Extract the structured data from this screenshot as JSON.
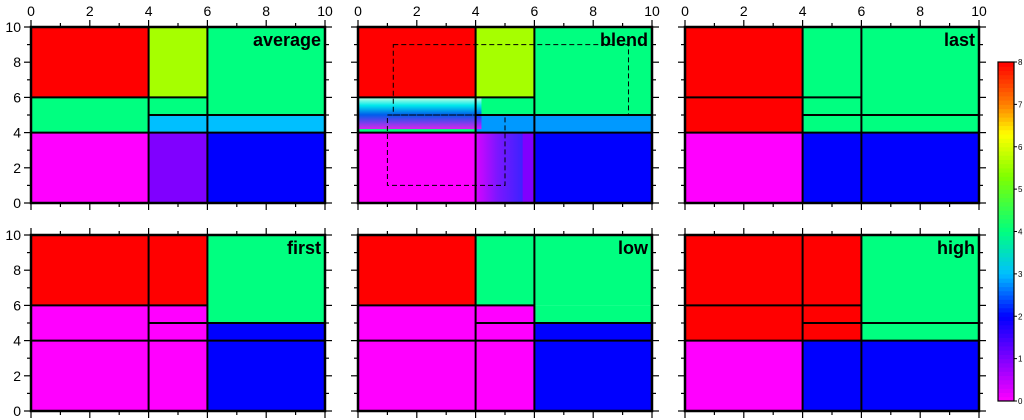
{
  "chart_data": {
    "type": "heatmap",
    "xlim": [
      0,
      10
    ],
    "ylim": [
      0,
      10
    ],
    "x_ticks": [
      "0",
      "2",
      "4",
      "6",
      "8",
      "10"
    ],
    "y_ticks": [
      "0",
      "2",
      "4",
      "6",
      "8",
      "10"
    ],
    "colorbar": {
      "range": [
        0,
        8
      ],
      "tick_labels": [
        "0",
        "1",
        "2",
        "3",
        "4",
        "5",
        "6",
        "7",
        "8"
      ],
      "colormap": [
        {
          "v": 0,
          "color": "#ff00ff"
        },
        {
          "v": 2,
          "color": "#0000ff"
        },
        {
          "v": 3,
          "color": "#00bfff"
        },
        {
          "v": 4,
          "color": "#00ff80"
        },
        {
          "v": 5.3,
          "color": "#80ff00"
        },
        {
          "v": 6.3,
          "color": "#ffff00"
        },
        {
          "v": 7,
          "color": "#ff8000"
        },
        {
          "v": 8,
          "color": "#ff0000"
        }
      ]
    },
    "panels": [
      {
        "title": "average",
        "cells": [
          {
            "x0": 0,
            "x1": 4,
            "y0": 6,
            "y1": 10,
            "value": 8
          },
          {
            "x0": 4,
            "x1": 6,
            "y0": 6,
            "y1": 10,
            "value": 5.6
          },
          {
            "x0": 6,
            "x1": 10,
            "y0": 5,
            "y1": 10,
            "value": 4
          },
          {
            "x0": 0,
            "x1": 4,
            "y0": 4,
            "y1": 6,
            "value": 4
          },
          {
            "x0": 4,
            "x1": 6,
            "y0": 5,
            "y1": 6,
            "value": 4
          },
          {
            "x0": 4,
            "x1": 10,
            "y0": 4,
            "y1": 5,
            "value": 3
          },
          {
            "x0": 0,
            "x1": 4,
            "y0": 0,
            "y1": 4,
            "value": 0
          },
          {
            "x0": 4,
            "x1": 6,
            "y0": 0,
            "y1": 4,
            "value": 1
          },
          {
            "x0": 6,
            "x1": 10,
            "y0": 0,
            "y1": 4,
            "value": 2
          }
        ],
        "grid_lines": [
          [
            0,
            6,
            6,
            6
          ],
          [
            4,
            5,
            10,
            5
          ],
          [
            0,
            4,
            10,
            4
          ],
          [
            4,
            0,
            4,
            10
          ],
          [
            6,
            0,
            6,
            10
          ]
        ]
      },
      {
        "title": "blend",
        "cells": [
          {
            "x0": 0,
            "x1": 4,
            "y0": 6,
            "y1": 10,
            "value": 8
          },
          {
            "x0": 4,
            "x1": 6,
            "y0": 6,
            "y1": 10,
            "value": 5.6
          },
          {
            "x0": 6,
            "x1": 10,
            "y0": 5,
            "y1": 10,
            "value": 4
          },
          {
            "x0": 0,
            "x1": 4,
            "y0": 4,
            "y1": 6,
            "value": 4
          },
          {
            "x0": 4,
            "x1": 6,
            "y0": 5,
            "y1": 6,
            "value": 4
          },
          {
            "x0": 4,
            "x1": 10,
            "y0": 4,
            "y1": 5,
            "value": 2.8
          },
          {
            "x0": 0,
            "x1": 4,
            "y0": 0,
            "y1": 4,
            "value": 0
          },
          {
            "x0": 4,
            "x1": 6,
            "y0": 0,
            "y1": 4,
            "value": 1
          },
          {
            "x0": 6,
            "x1": 10,
            "y0": 0,
            "y1": 4,
            "value": 2
          }
        ],
        "grid_lines": [
          [
            0,
            6,
            6,
            6
          ],
          [
            4,
            5,
            10,
            5
          ],
          [
            0,
            4,
            10,
            4
          ],
          [
            4,
            0,
            4,
            10
          ],
          [
            6,
            0,
            6,
            10
          ]
        ],
        "dashed_boxes": [
          [
            1,
            1,
            5,
            5
          ],
          [
            1.2,
            9,
            9.2,
            5
          ]
        ]
      },
      {
        "title": "last",
        "cells": [
          {
            "x0": 0,
            "x1": 4,
            "y0": 4,
            "y1": 10,
            "value": 8
          },
          {
            "x0": 4,
            "x1": 10,
            "y0": 4,
            "y1": 10,
            "value": 4
          },
          {
            "x0": 0,
            "x1": 4,
            "y0": 0,
            "y1": 4,
            "value": 0
          },
          {
            "x0": 4,
            "x1": 10,
            "y0": 0,
            "y1": 4,
            "value": 2
          }
        ],
        "grid_lines": [
          [
            0,
            6,
            6,
            6
          ],
          [
            4,
            5,
            10,
            5
          ],
          [
            0,
            4,
            10,
            4
          ],
          [
            4,
            0,
            4,
            10
          ],
          [
            6,
            0,
            6,
            10
          ]
        ]
      },
      {
        "title": "first",
        "cells": [
          {
            "x0": 0,
            "x1": 6,
            "y0": 6,
            "y1": 10,
            "value": 8
          },
          {
            "x0": 6,
            "x1": 10,
            "y0": 5,
            "y1": 10,
            "value": 4
          },
          {
            "x0": 4,
            "x1": 6,
            "y0": 5,
            "y1": 6,
            "value": 0
          },
          {
            "x0": 0,
            "x1": 4,
            "y0": 0,
            "y1": 6,
            "value": 0
          },
          {
            "x0": 4,
            "x1": 6,
            "y0": 0,
            "y1": 5,
            "value": 0
          },
          {
            "x0": 6,
            "x1": 10,
            "y0": 0,
            "y1": 5,
            "value": 2
          }
        ],
        "grid_lines": [
          [
            0,
            6,
            6,
            6
          ],
          [
            4,
            5,
            10,
            5
          ],
          [
            0,
            4,
            10,
            4
          ],
          [
            4,
            0,
            4,
            10
          ],
          [
            6,
            0,
            6,
            10
          ]
        ]
      },
      {
        "title": "low",
        "cells": [
          {
            "x0": 0,
            "x1": 4,
            "y0": 6,
            "y1": 10,
            "value": 8
          },
          {
            "x0": 4,
            "x1": 10,
            "y0": 6,
            "y1": 10,
            "value": 4
          },
          {
            "x0": 6,
            "x1": 10,
            "y0": 5,
            "y1": 6,
            "value": 4
          },
          {
            "x0": 0,
            "x1": 6,
            "y0": 0,
            "y1": 6,
            "value": 0
          },
          {
            "x0": 6,
            "x1": 10,
            "y0": 0,
            "y1": 5,
            "value": 2
          }
        ],
        "grid_lines": [
          [
            0,
            6,
            6,
            6
          ],
          [
            4,
            5,
            10,
            5
          ],
          [
            0,
            4,
            10,
            4
          ],
          [
            4,
            0,
            4,
            10
          ],
          [
            6,
            0,
            6,
            10
          ]
        ]
      },
      {
        "title": "high",
        "cells": [
          {
            "x0": 0,
            "x1": 6,
            "y0": 4,
            "y1": 10,
            "value": 8
          },
          {
            "x0": 6,
            "x1": 10,
            "y0": 4,
            "y1": 10,
            "value": 4
          },
          {
            "x0": 0,
            "x1": 4,
            "y0": 0,
            "y1": 4,
            "value": 0
          },
          {
            "x0": 4,
            "x1": 10,
            "y0": 0,
            "y1": 4,
            "value": 2
          }
        ],
        "grid_lines": [
          [
            0,
            6,
            6,
            6
          ],
          [
            4,
            5,
            10,
            5
          ],
          [
            0,
            4,
            10,
            4
          ],
          [
            4,
            0,
            4,
            10
          ],
          [
            6,
            0,
            6,
            10
          ]
        ]
      }
    ]
  }
}
